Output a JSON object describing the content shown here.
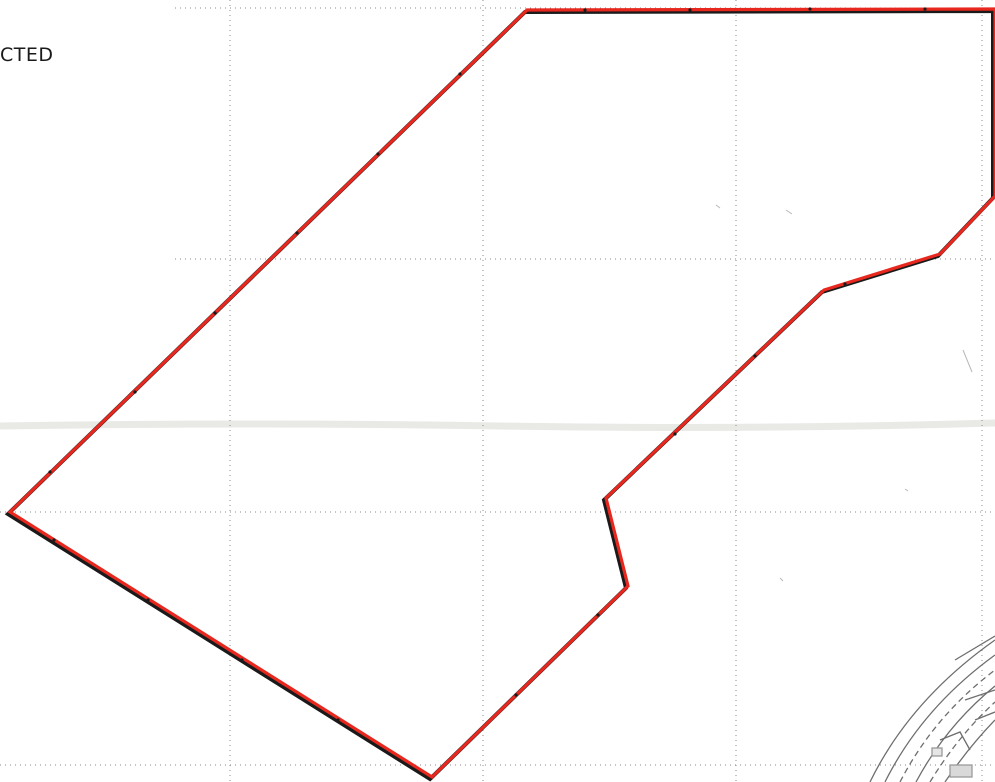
{
  "map": {
    "partial_label": "CTED",
    "colors": {
      "background": "#ffffff",
      "boundary_outer": "#1a1a1a",
      "boundary_inner": "#e8281e",
      "grid": "#8a8a8a",
      "fold_line": "#e9e9e6",
      "road_lines": "#6e6e6e"
    }
  }
}
